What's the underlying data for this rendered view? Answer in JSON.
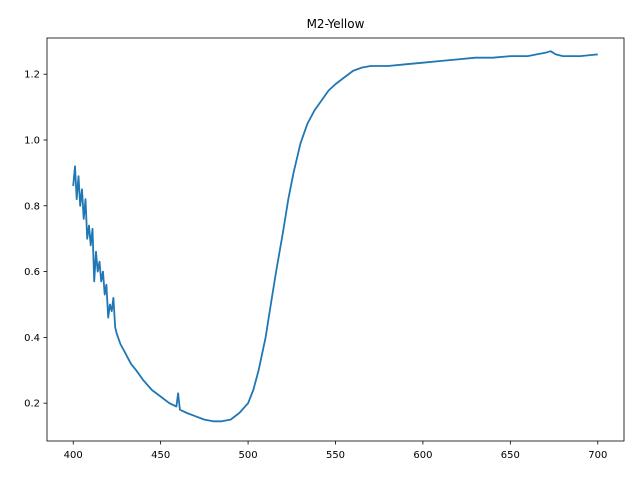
{
  "chart_data": {
    "type": "line",
    "title": "M2-Yellow",
    "xlabel": "",
    "ylabel": "",
    "xlim": [
      385,
      715
    ],
    "ylim": [
      0.085,
      1.31
    ],
    "xticks": [
      400,
      450,
      500,
      550,
      600,
      650,
      700
    ],
    "yticks": [
      0.2,
      0.4,
      0.6,
      0.8,
      1.0,
      1.2
    ],
    "xtick_labels": [
      "400",
      "450",
      "500",
      "550",
      "600",
      "650",
      "700"
    ],
    "ytick_labels": [
      "0.2",
      "0.4",
      "0.6",
      "0.8",
      "1.0",
      "1.2"
    ],
    "grid": false,
    "series": [
      {
        "color": "#1f77b4",
        "x": [
          400,
          401,
          402,
          403,
          404,
          405,
          406,
          407,
          408,
          409,
          410,
          411,
          412,
          413,
          414,
          415,
          416,
          417,
          418,
          419,
          420,
          421,
          422,
          423,
          424,
          425,
          427,
          430,
          433,
          436,
          440,
          445,
          450,
          455,
          459,
          460,
          461,
          465,
          470,
          475,
          480,
          485,
          490,
          495,
          500,
          503,
          506,
          510,
          513,
          516,
          520,
          523,
          526,
          530,
          534,
          538,
          542,
          546,
          550,
          555,
          560,
          565,
          570,
          580,
          590,
          600,
          610,
          620,
          630,
          640,
          650,
          660,
          665,
          670,
          673,
          676,
          680,
          690,
          700
        ],
        "y": [
          0.86,
          0.92,
          0.82,
          0.89,
          0.8,
          0.85,
          0.76,
          0.82,
          0.7,
          0.74,
          0.68,
          0.73,
          0.57,
          0.66,
          0.6,
          0.63,
          0.57,
          0.6,
          0.53,
          0.56,
          0.46,
          0.5,
          0.48,
          0.52,
          0.43,
          0.41,
          0.38,
          0.35,
          0.32,
          0.3,
          0.27,
          0.24,
          0.22,
          0.2,
          0.19,
          0.23,
          0.18,
          0.17,
          0.16,
          0.15,
          0.145,
          0.145,
          0.15,
          0.17,
          0.2,
          0.24,
          0.3,
          0.4,
          0.5,
          0.6,
          0.72,
          0.82,
          0.9,
          0.99,
          1.05,
          1.09,
          1.12,
          1.15,
          1.17,
          1.19,
          1.21,
          1.22,
          1.225,
          1.225,
          1.23,
          1.235,
          1.24,
          1.245,
          1.25,
          1.25,
          1.255,
          1.255,
          1.26,
          1.265,
          1.27,
          1.26,
          1.255,
          1.255,
          1.26
        ]
      }
    ]
  }
}
